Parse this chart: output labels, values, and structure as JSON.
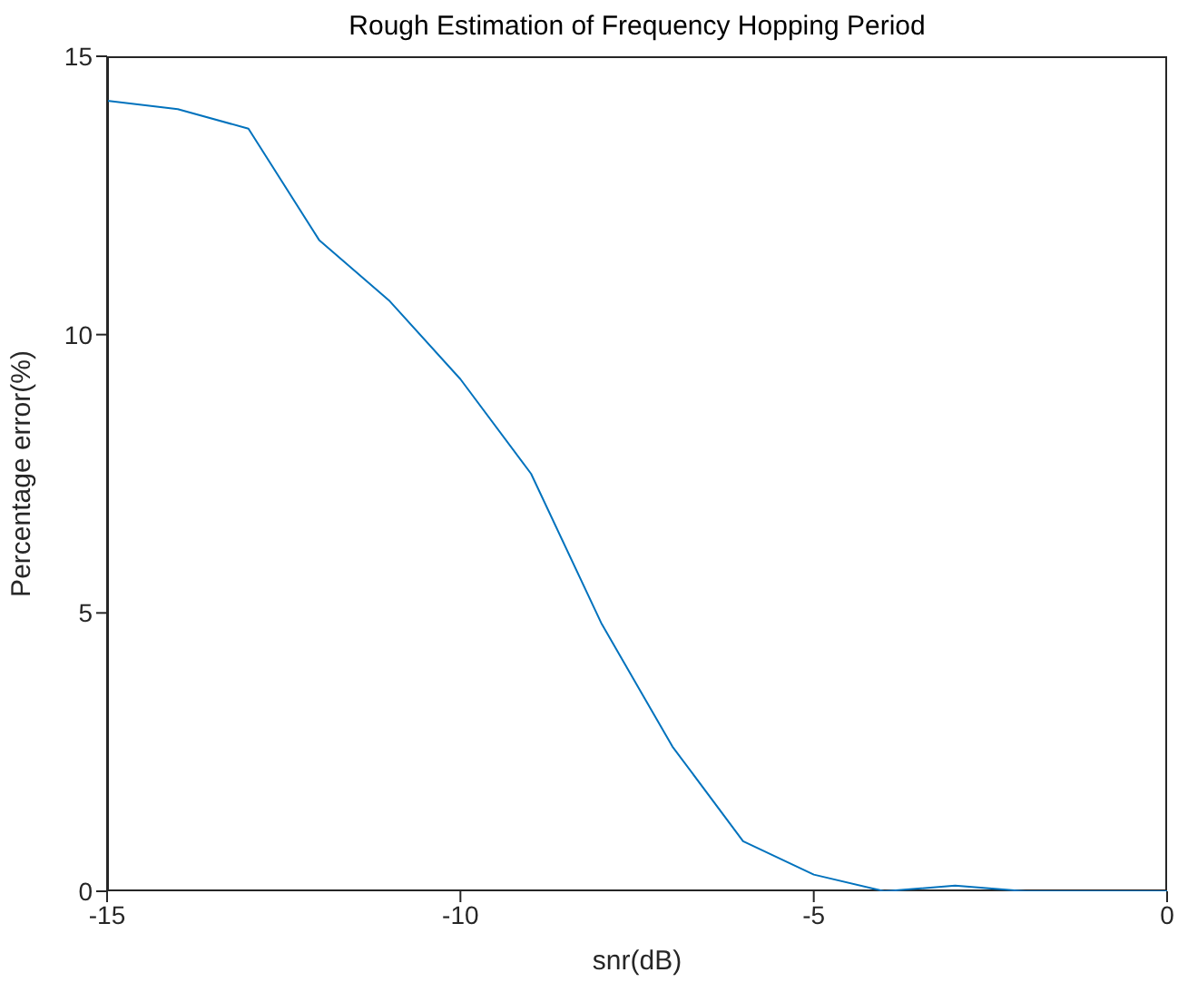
{
  "chart_data": {
    "type": "line",
    "title": "Rough Estimation of Frequency Hopping Period",
    "xlabel": "snr(dB)",
    "ylabel": "Percentage error(%)",
    "x": [
      -15,
      -14,
      -13,
      -12,
      -11,
      -10,
      -9,
      -8,
      -7,
      -6,
      -5,
      -4,
      -3,
      -2,
      -1,
      0
    ],
    "series": [
      {
        "color": "#0072bd",
        "values": [
          14.2,
          14.05,
          13.7,
          11.7,
          10.6,
          9.2,
          7.5,
          4.8,
          2.6,
          0.9,
          0.3,
          0,
          0.1,
          0,
          0,
          0
        ]
      }
    ],
    "xlim": [
      -15,
      0
    ],
    "xticks": [
      -15,
      -10,
      -5,
      0
    ],
    "ylim": [
      0,
      15
    ],
    "yticks": [
      0,
      5,
      10,
      15
    ],
    "grid": false,
    "legend": false,
    "marker": "none",
    "line_style": "solid"
  }
}
